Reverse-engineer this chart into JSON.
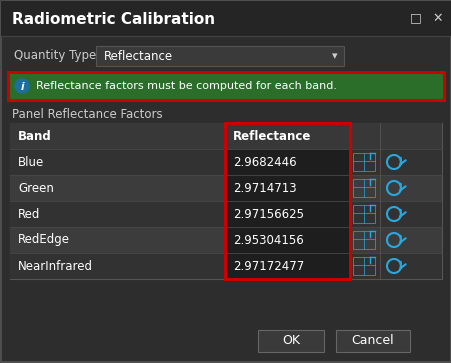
{
  "title": "Radiometric Calibration",
  "bg_color": "#2d2d2d",
  "title_color": "#ffffff",
  "label_color": "#cccccc",
  "value_color": "#ffffff",
  "quantity_type_label": "Quantity Type",
  "quantity_type_value": "Reflectance",
  "info_bg": "#2a6e2a",
  "info_border": "#cc0000",
  "info_text": "Reflectance factors must be computed for each band.",
  "section_label": "Panel Reflectance Factors",
  "table_header_band": "Band",
  "table_header_reflectance": "Reflectance",
  "bands": [
    "Blue",
    "Green",
    "Red",
    "RedEdge",
    "NearInfrared"
  ],
  "values": [
    "2.9682446",
    "2.9714713",
    "2.97156625",
    "2.95304156",
    "2.97172477"
  ],
  "row_colors_dark": [
    "#2e2e2e",
    "#2e2e2e",
    "#2e2e2e",
    "#2e2e2e",
    "#2e2e2e"
  ],
  "row_colors_light": [
    "#3a3a3a",
    "#3a3a3a",
    "#3a3a3a",
    "#3a3a3a",
    "#3a3a3a"
  ],
  "header_row_color": "#383838",
  "table_border": "#555555",
  "red_border": "#cc0000",
  "cell_dark": "#1e1e1e",
  "dropdown_bg": "#3a3a3a",
  "dropdown_border": "#555555",
  "button_bg": "#3a3a3a",
  "button_border": "#666666",
  "button_text_color": "#ffffff",
  "icon_color": "#29a8e0",
  "dialog_border": "#555555",
  "titlebar_bg": "#252525",
  "separator_color": "#444444"
}
